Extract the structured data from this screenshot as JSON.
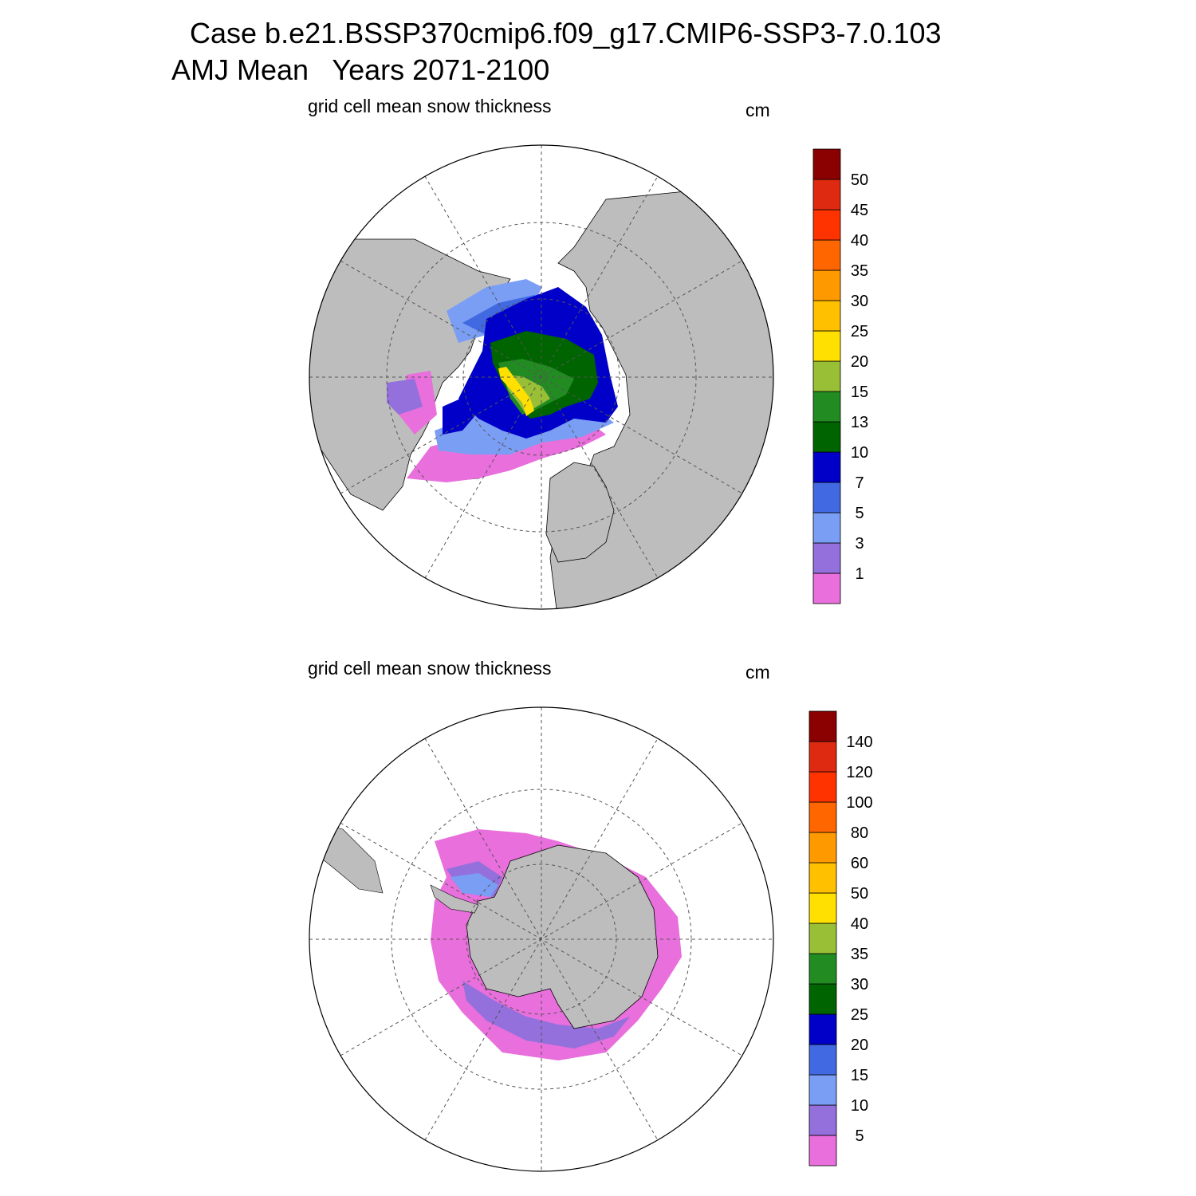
{
  "title": {
    "line1": "Case b.e21.BSSP370cmip6.f09_g17.CMIP6-SSP3-7.0.103",
    "line2": "AMJ Mean   Years 2071-2100"
  },
  "colors": {
    "land": "#bdbdbd",
    "ocean": "#ffffff",
    "scale": [
      "#e86fdc",
      "#9370db",
      "#7b9ef5",
      "#4169e1",
      "#0000c8",
      "#006400",
      "#228b22",
      "#98bf35",
      "#ffe000",
      "#ffc000",
      "#ff9900",
      "#ff6600",
      "#ff3300",
      "#dd2a10",
      "#8b0000"
    ]
  },
  "panels": [
    {
      "id": "north",
      "hemisphere": "north",
      "variable": "grid cell mean snow thickness",
      "units": "cm",
      "levels": [
        "1",
        "3",
        "5",
        "7",
        "10",
        "13",
        "15",
        "20",
        "25",
        "30",
        "35",
        "40",
        "45",
        "50"
      ]
    },
    {
      "id": "south",
      "hemisphere": "south",
      "variable": "grid cell mean snow thickness",
      "units": "cm",
      "levels": [
        "5",
        "10",
        "15",
        "20",
        "25",
        "30",
        "35",
        "40",
        "50",
        "60",
        "80",
        "100",
        "120",
        "140"
      ]
    }
  ]
}
